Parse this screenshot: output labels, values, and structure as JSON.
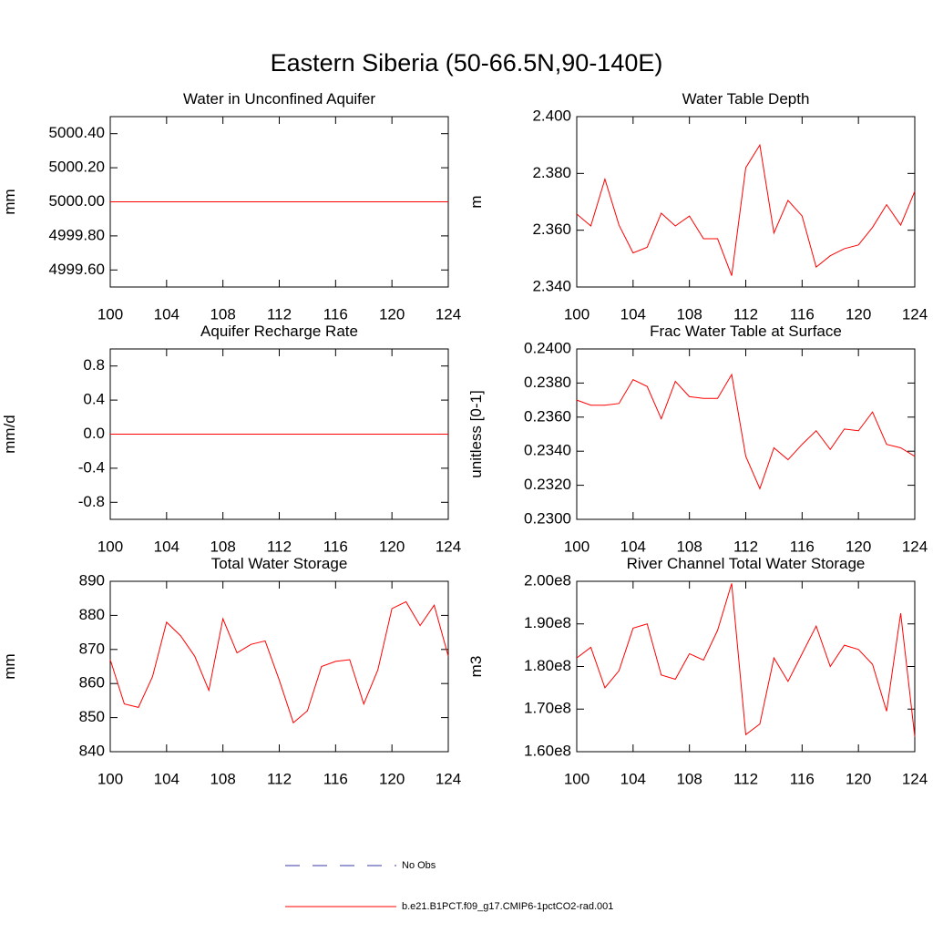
{
  "title": "Eastern Siberia (50-66.5N,90-140E)",
  "legend": [
    {
      "name": "No Obs",
      "color": "#3a3aa8",
      "dashed": true
    },
    {
      "name": "b.e21.B1PCT.f09_g17.CMIP6-1pctCO2-rad.001",
      "color": "#ff0000",
      "dashed": false
    }
  ],
  "chart_data": [
    {
      "type": "line",
      "title": "Water in Unconfined Aquifer",
      "ylabel": "mm",
      "x": [
        100,
        101,
        102,
        103,
        104,
        105,
        106,
        107,
        108,
        109,
        110,
        111,
        112,
        113,
        114,
        115,
        116,
        117,
        118,
        119,
        120,
        121,
        122,
        123,
        124
      ],
      "xlim": [
        100,
        124
      ],
      "xticks": [
        100,
        104,
        108,
        112,
        116,
        120,
        124
      ],
      "ylim": [
        4999.5,
        5000.5
      ],
      "yticks": [
        {
          "value": 4999.6,
          "label": "4999.60"
        },
        {
          "value": 4999.8,
          "label": "4999.80"
        },
        {
          "value": 5000.0,
          "label": "5000.00"
        },
        {
          "value": 5000.2,
          "label": "5000.20"
        },
        {
          "value": 5000.4,
          "label": "5000.40"
        }
      ],
      "series": [
        {
          "color": "#ff0000",
          "values": [
            5000,
            5000,
            5000,
            5000,
            5000,
            5000,
            5000,
            5000,
            5000,
            5000,
            5000,
            5000,
            5000,
            5000,
            5000,
            5000,
            5000,
            5000,
            5000,
            5000,
            5000,
            5000,
            5000,
            5000,
            5000
          ]
        }
      ]
    },
    {
      "type": "line",
      "title": "Water Table Depth",
      "ylabel": "m",
      "x": [
        100,
        101,
        102,
        103,
        104,
        105,
        106,
        107,
        108,
        109,
        110,
        111,
        112,
        113,
        114,
        115,
        116,
        117,
        118,
        119,
        120,
        121,
        122,
        123,
        124
      ],
      "xlim": [
        100,
        124
      ],
      "xticks": [
        100,
        104,
        108,
        112,
        116,
        120,
        124
      ],
      "ylim": [
        2.34,
        2.4
      ],
      "yticks": [
        {
          "value": 2.34,
          "label": "2.340"
        },
        {
          "value": 2.36,
          "label": "2.360"
        },
        {
          "value": 2.38,
          "label": "2.380"
        },
        {
          "value": 2.4,
          "label": "2.400"
        }
      ],
      "series": [
        {
          "color": "#ff0000",
          "values": [
            2.3657,
            2.3615,
            2.378,
            2.3618,
            2.352,
            2.354,
            2.366,
            2.3615,
            2.365,
            2.357,
            2.357,
            2.344,
            2.382,
            2.39,
            2.359,
            2.3705,
            2.365,
            2.347,
            2.351,
            2.3535,
            2.3548,
            2.361,
            2.369,
            2.3618,
            2.3737
          ]
        }
      ]
    },
    {
      "type": "line",
      "title": "Aquifer Recharge Rate",
      "ylabel": "mm/d",
      "x": [
        100,
        101,
        102,
        103,
        104,
        105,
        106,
        107,
        108,
        109,
        110,
        111,
        112,
        113,
        114,
        115,
        116,
        117,
        118,
        119,
        120,
        121,
        122,
        123,
        124
      ],
      "xlim": [
        100,
        124
      ],
      "xticks": [
        100,
        104,
        108,
        112,
        116,
        120,
        124
      ],
      "ylim": [
        -1,
        1
      ],
      "yticks": [
        -0.8,
        -0.4,
        {
          "value": 0,
          "label": "0.0"
        },
        0.4,
        0.8
      ],
      "series": [
        {
          "color": "#ff0000",
          "values": [
            0,
            0,
            0,
            0,
            0,
            0,
            0,
            0,
            0,
            0,
            0,
            0,
            0,
            0,
            0,
            0,
            0,
            0,
            0,
            0,
            0,
            0,
            0,
            0,
            0
          ]
        }
      ]
    },
    {
      "type": "line",
      "title": "Frac Water Table at Surface",
      "ylabel": "unitless [0-1]",
      "x": [
        100,
        101,
        102,
        103,
        104,
        105,
        106,
        107,
        108,
        109,
        110,
        111,
        112,
        113,
        114,
        115,
        116,
        117,
        118,
        119,
        120,
        121,
        122,
        123,
        124
      ],
      "xlim": [
        100,
        124
      ],
      "xticks": [
        100,
        104,
        108,
        112,
        116,
        120,
        124
      ],
      "ylim": [
        0.23,
        0.24
      ],
      "yticks": [
        {
          "value": 0.23,
          "label": "0.2300"
        },
        {
          "value": 0.232,
          "label": "0.2320"
        },
        {
          "value": 0.234,
          "label": "0.2340"
        },
        {
          "value": 0.236,
          "label": "0.2360"
        },
        {
          "value": 0.238,
          "label": "0.2380"
        },
        {
          "value": 0.24,
          "label": "0.2400"
        }
      ],
      "series": [
        {
          "color": "#ff0000",
          "values": [
            0.237,
            0.2367,
            0.2367,
            0.2368,
            0.2382,
            0.2378,
            0.2359,
            0.2381,
            0.2372,
            0.2371,
            0.2371,
            0.2385,
            0.2337,
            0.2318,
            0.2342,
            0.2335,
            0.2344,
            0.2352,
            0.2341,
            0.2353,
            0.2352,
            0.2363,
            0.2344,
            0.2342,
            0.2337
          ]
        }
      ]
    },
    {
      "type": "line",
      "title": "Total Water Storage",
      "ylabel": "mm",
      "x": [
        100,
        101,
        102,
        103,
        104,
        105,
        106,
        107,
        108,
        109,
        110,
        111,
        112,
        113,
        114,
        115,
        116,
        117,
        118,
        119,
        120,
        121,
        122,
        123,
        124
      ],
      "xlim": [
        100,
        124
      ],
      "xticks": [
        100,
        104,
        108,
        112,
        116,
        120,
        124
      ],
      "ylim": [
        840,
        890
      ],
      "yticks": [
        840,
        850,
        860,
        870,
        880,
        890
      ],
      "series": [
        {
          "color": "#ff0000",
          "values": [
            867,
            854,
            853,
            862,
            878,
            874,
            868,
            858,
            879,
            869,
            871.5,
            872.5,
            861,
            848.5,
            852,
            865,
            866.5,
            867,
            854,
            864,
            882,
            884,
            877,
            883,
            868
          ]
        }
      ]
    },
    {
      "type": "line",
      "title": "River Channel Total Water Storage",
      "ylabel": "m3",
      "x": [
        100,
        101,
        102,
        103,
        104,
        105,
        106,
        107,
        108,
        109,
        110,
        111,
        112,
        113,
        114,
        115,
        116,
        117,
        118,
        119,
        120,
        121,
        122,
        123,
        124
      ],
      "xlim": [
        100,
        124
      ],
      "xticks": [
        100,
        104,
        108,
        112,
        116,
        120,
        124
      ],
      "ylim": [
        160000000,
        200000000
      ],
      "yticks": [
        {
          "value": 160000000,
          "label": "1.60e8"
        },
        {
          "value": 170000000,
          "label": "1.70e8"
        },
        {
          "value": 180000000,
          "label": "1.80e8"
        },
        {
          "value": 190000000,
          "label": "1.90e8"
        },
        {
          "value": 200000000,
          "label": "2.00e8"
        }
      ],
      "series": [
        {
          "color": "#ff0000",
          "values": [
            182000000,
            184500000,
            175000000,
            179000000,
            189000000,
            190000000,
            178000000,
            177000000,
            183000000,
            181500000,
            188500000,
            199500000,
            164000000,
            166500000,
            182000000,
            176500000,
            183000000,
            189500000,
            180000000,
            185000000,
            184000000,
            180500000,
            169500000,
            192500000,
            163500000
          ]
        }
      ]
    }
  ]
}
